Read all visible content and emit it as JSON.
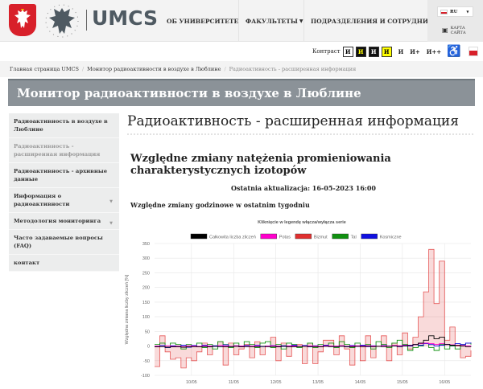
{
  "header": {
    "logo_text": "UMCS",
    "nav": [
      {
        "label": "ОБ УНИВЕРСИТЕТЕ"
      },
      {
        "label": "ФАКУЛЬТЕТЫ",
        "dropdown": true
      },
      {
        "label": "ПОДРАЗДЕЛЕНИЯ И СОТРУДНИКИ"
      }
    ],
    "language": "RU",
    "sitemap_line1": "КАРТА",
    "sitemap_line2": "САЙТА"
  },
  "accessibility": {
    "contrast_label": "Контраст",
    "contrast_options": [
      "И",
      "И",
      "И",
      "И"
    ],
    "font_sizes": [
      "И",
      "И+",
      "И++"
    ]
  },
  "breadcrumb": [
    {
      "label": "Главная страница UMCS"
    },
    {
      "label": "Монитор радиоактивности в воздухе в Люблине"
    },
    {
      "label": "Радиоактивность - расширенная информация"
    }
  ],
  "page_banner": "Монитор радиоактивности в воздухе в Люблине",
  "sidebar": {
    "items": [
      {
        "label": "Радиоактивность в воздухе в Люблине"
      },
      {
        "label": "Радиоактивность - расширенная информация",
        "active": true
      },
      {
        "label": "Радиоактивность - архивные данные"
      },
      {
        "label": "Информация о радиоактивности",
        "dropdown": true
      },
      {
        "label": "Методология мониторинга",
        "dropdown": true
      },
      {
        "label": "Часто задаваемые вопросы (FAQ)"
      },
      {
        "label": "контакт"
      }
    ]
  },
  "main": {
    "title": "Радиоактивность - расширенная информация",
    "heading": "Względne zmiany natężenia promieniowania charakterystycznych izotopów",
    "updated": "Ostatnia aktualizacja: 16-05-2023 16:00",
    "subheading": "Względne zmiany godzinowe w ostatnim tygodniu"
  },
  "chart_data": {
    "type": "line",
    "title": "Kliknięcie w legendę włącza/wyłącza serie",
    "ylabel": "Względna zmiana liczby zliczeń [%]",
    "xlabel": "",
    "ylim": [
      -100,
      350
    ],
    "yticks": [
      -100,
      -50,
      0,
      50,
      100,
      150,
      200,
      250,
      300,
      350
    ],
    "xticks": [
      "10/05",
      "11/05",
      "12/05",
      "13/05",
      "14/05",
      "15/05",
      "16/05"
    ],
    "grid": true,
    "legend": "top",
    "step": true,
    "x_start": "09/05 03:00",
    "x_end": "16/05 15:00",
    "series": [
      {
        "name": "Całkowita liczba zliczeń",
        "color": "#000000",
        "values": [
          -3,
          -2,
          -4,
          -3,
          -2,
          -4,
          -3,
          -2,
          -3,
          -2,
          -3,
          -1,
          -2,
          -3,
          -2,
          -1,
          -3,
          -2,
          -2,
          -3,
          -1,
          -2,
          -2,
          -3,
          -1,
          -2,
          -3,
          -2,
          -1,
          -2,
          -2,
          -3,
          -1,
          -2,
          -2,
          -1,
          -2,
          -3,
          -1,
          -2,
          -1,
          -2,
          -1,
          -2,
          -1,
          0,
          -1,
          0,
          2,
          5,
          10,
          20,
          35,
          25,
          30,
          5,
          3,
          2,
          0,
          -2,
          -3
        ]
      },
      {
        "name": "Potas",
        "color": "#ff00cc",
        "values": [
          0,
          -2,
          1,
          -1,
          0,
          -2,
          1,
          0,
          -1,
          1,
          0,
          -1,
          2,
          0,
          -1,
          1,
          0,
          -1,
          0,
          1,
          -1,
          0,
          1,
          0,
          -1,
          1,
          0,
          -1,
          0,
          1,
          0,
          -1,
          1,
          0,
          0,
          1,
          -1,
          0,
          1,
          0,
          1,
          0,
          -1,
          1,
          0,
          2,
          1,
          2,
          3,
          5,
          8,
          10,
          8,
          6,
          8,
          5,
          4,
          3,
          2,
          1,
          0
        ]
      },
      {
        "name": "Bizmut",
        "color": "#e03030",
        "values": [
          -70,
          35,
          -20,
          -45,
          -40,
          -75,
          -40,
          -50,
          -20,
          10,
          -30,
          0,
          15,
          -65,
          10,
          -30,
          -10,
          5,
          -40,
          15,
          -30,
          0,
          30,
          -50,
          10,
          -35,
          0,
          5,
          -60,
          10,
          -60,
          -20,
          20,
          20,
          -30,
          35,
          -10,
          -65,
          0,
          -50,
          35,
          -40,
          0,
          35,
          -50,
          10,
          -30,
          45,
          -10,
          30,
          100,
          185,
          330,
          145,
          290,
          20,
          65,
          0,
          -40,
          -35,
          -15
        ]
      },
      {
        "name": "Tal",
        "color": "#109010",
        "values": [
          5,
          10,
          -5,
          10,
          5,
          -10,
          5,
          0,
          10,
          -5,
          5,
          -10,
          15,
          5,
          -5,
          10,
          0,
          15,
          5,
          -5,
          10,
          15,
          -5,
          5,
          -10,
          10,
          5,
          -5,
          0,
          10,
          -5,
          5,
          0,
          10,
          -5,
          15,
          5,
          -5,
          10,
          0,
          5,
          -10,
          15,
          5,
          -5,
          10,
          20,
          5,
          -15,
          -5,
          0,
          10,
          -5,
          -15,
          5,
          -10,
          0,
          -10,
          5,
          10,
          5
        ]
      },
      {
        "name": "Kosmiczne",
        "color": "#1010e0",
        "values": [
          -3,
          2,
          -5,
          1,
          -2,
          3,
          -4,
          2,
          -1,
          3,
          -3,
          1,
          -2,
          4,
          -2,
          1,
          -3,
          2,
          -1,
          3,
          -2,
          0,
          2,
          -3,
          1,
          -2,
          3,
          -1,
          2,
          -3,
          1,
          -2,
          3,
          0,
          -2,
          1,
          -3,
          2,
          -1,
          3,
          -2,
          1,
          -1,
          2,
          0,
          1,
          -2,
          3,
          0,
          5,
          3,
          8,
          5,
          0,
          3,
          6,
          2,
          8,
          5,
          10,
          12
        ]
      }
    ]
  }
}
